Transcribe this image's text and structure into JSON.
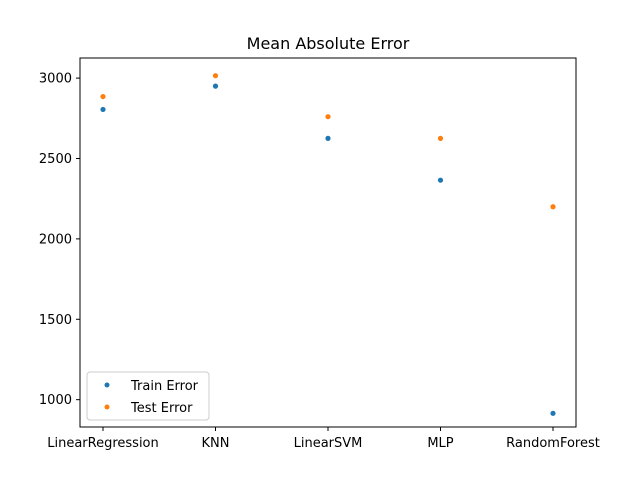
{
  "chart_data": {
    "type": "scatter",
    "title": "Mean Absolute Error",
    "xlabel": "",
    "ylabel": "",
    "categories": [
      "LinearRegression",
      "KNN",
      "LinearSVM",
      "MLP",
      "RandomForest"
    ],
    "series": [
      {
        "name": "Train Error",
        "color": "#1f77b4",
        "values": [
          2805,
          2950,
          2625,
          2365,
          915
        ]
      },
      {
        "name": "Test Error",
        "color": "#ff7f0e",
        "values": [
          2885,
          3015,
          2760,
          2625,
          2200
        ]
      }
    ],
    "yticks": [
      1000,
      1500,
      2000,
      2500,
      3000
    ],
    "ylim": [
      830,
      3125
    ],
    "grid": false,
    "legend": {
      "position": "lower-left",
      "entries": [
        "Train Error",
        "Test Error"
      ]
    }
  }
}
